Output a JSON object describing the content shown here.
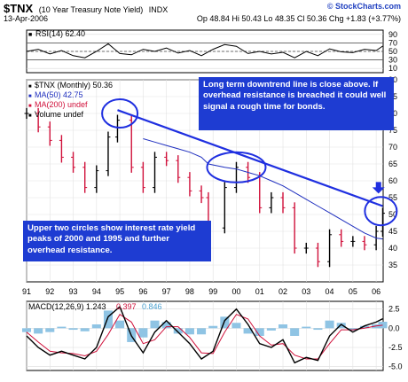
{
  "header": {
    "symbol": "$TNX",
    "name": "(10 Year Treasury Note Yield)",
    "exchange": "INDX",
    "date": "13-Apr-2006",
    "quote": "Op 48.84  Hi 50.43  Lo 48.35  Cl 50.36  Chg +1.83 (+3.77%)",
    "copyright": "© StockCharts.com",
    "copyright_color": "#2040c0"
  },
  "annotations": {
    "top_right": "Long term downtrend line is close above. If overhead resistance is breached it could well signal a rough time for bonds.",
    "bottom_left": "Upper two circles show interest rate yield peaks of 2000 and 1995 and further overhead resistance.",
    "note_bg": "#1e3cd2"
  },
  "chart_data": [
    {
      "type": "line",
      "panel": "RSI",
      "legend": [
        {
          "name": "RSI(14) 62.40",
          "color": "#000000"
        }
      ],
      "ylim": [
        0,
        100
      ],
      "yticks": [
        10,
        30,
        50,
        70,
        90
      ],
      "reference_lines": [
        30,
        50,
        70
      ],
      "grid": true,
      "x": [
        1991.0,
        1991.5,
        1992.0,
        1992.5,
        1993.0,
        1993.5,
        1994.0,
        1994.5,
        1995.0,
        1995.5,
        1996.0,
        1996.5,
        1997.0,
        1997.5,
        1998.0,
        1998.5,
        1999.0,
        1999.5,
        2000.0,
        2000.5,
        2001.0,
        2001.5,
        2002.0,
        2002.5,
        2003.0,
        2003.5,
        2004.0,
        2004.5,
        2005.0,
        2005.5,
        2006.0,
        2006.28
      ],
      "series": [
        {
          "values": [
            50,
            55,
            44,
            52,
            40,
            35,
            50,
            68,
            45,
            42,
            55,
            50,
            58,
            46,
            52,
            40,
            55,
            66,
            62,
            45,
            50,
            44,
            48,
            35,
            50,
            40,
            56,
            49,
            47,
            55,
            52,
            62.4
          ]
        }
      ]
    },
    {
      "type": "bar",
      "panel": "price",
      "legend": [
        {
          "name": "$TNX (Monthly) 50.36",
          "color": "#000000"
        },
        {
          "name": "MA(50) 42.75",
          "color": "#1f2fbf"
        },
        {
          "name": "MA(200) undef",
          "color": "#d0103a"
        },
        {
          "name": "Volume undef",
          "color": "#000000"
        }
      ],
      "ylim": [
        30,
        90
      ],
      "yticks": [
        35,
        40,
        45,
        50,
        55,
        60,
        65,
        70,
        75,
        80,
        85,
        90
      ],
      "xlim": [
        1991.0,
        2006.3
      ],
      "xticks": [
        "91",
        "92",
        "93",
        "94",
        "95",
        "96",
        "97",
        "98",
        "99",
        "00",
        "01",
        "02",
        "03",
        "04",
        "05",
        "06"
      ],
      "grid": true,
      "up_color": "#000000",
      "down_color": "#d0103a",
      "x": [
        1991.0,
        1991.5,
        1992.0,
        1992.5,
        1993.0,
        1993.5,
        1994.0,
        1994.5,
        1994.9,
        1995.5,
        1996.0,
        1996.5,
        1997.0,
        1997.5,
        1998.0,
        1998.5,
        1998.8,
        1999.5,
        2000.0,
        2000.5,
        2001.0,
        2001.5,
        2002.0,
        2002.5,
        2003.0,
        2003.5,
        2004.0,
        2004.5,
        2005.0,
        2005.5,
        2006.0,
        2006.28
      ],
      "series": [
        {
          "name": "close",
          "values": [
            80,
            76,
            72,
            67,
            64,
            58,
            63,
            73,
            78,
            64,
            58,
            67,
            66,
            61,
            57,
            55,
            46,
            58,
            64,
            61,
            52,
            55,
            52,
            40,
            40,
            36,
            44,
            42,
            42,
            41,
            45,
            50.36
          ]
        },
        {
          "name": "MA(50)",
          "values": [
            null,
            null,
            null,
            null,
            null,
            null,
            null,
            null,
            null,
            null,
            72.5,
            71.5,
            70.5,
            69.5,
            68.5,
            67,
            65,
            64,
            63.5,
            62.5,
            61.5,
            60,
            58.5,
            56.5,
            54.5,
            52.5,
            50.5,
            48.5,
            46.5,
            44.5,
            43,
            42.75
          ]
        }
      ],
      "trendline": {
        "x": [
          1994.9,
          2006.28
        ],
        "y": [
          81,
          52.5
        ],
        "color": "#1f2fe0"
      },
      "circles": [
        {
          "x": 1995.0,
          "y": 80
        },
        {
          "x": 2000.0,
          "y": 64
        },
        {
          "x": 2006.2,
          "y": 51
        }
      ],
      "arrow": {
        "x": 2006.1,
        "y": 57,
        "direction": "down"
      }
    },
    {
      "type": "line",
      "panel": "MACD",
      "legend": [
        {
          "name": "MACD(12,26,9) 1.243",
          "color": "#000000"
        },
        {
          "name": "0.397",
          "color": "#d0103a"
        },
        {
          "name": "0.846",
          "color": "#4aa0d0"
        }
      ],
      "ylim": [
        -5.5,
        3.5
      ],
      "yticks": [
        -5.0,
        -2.5,
        0.0,
        2.5
      ],
      "grid": true,
      "x": [
        1991.0,
        1991.5,
        1992.0,
        1992.5,
        1993.0,
        1993.5,
        1994.0,
        1994.5,
        1995.0,
        1995.5,
        1996.0,
        1996.5,
        1997.0,
        1997.5,
        1998.0,
        1998.5,
        1999.0,
        1999.5,
        2000.0,
        2000.5,
        2001.0,
        2001.5,
        2002.0,
        2002.5,
        2003.0,
        2003.5,
        2004.0,
        2004.5,
        2005.0,
        2005.5,
        2006.0,
        2006.28
      ],
      "series": [
        {
          "name": "MACD",
          "values": [
            -1,
            -2.5,
            -3.5,
            -3,
            -3.5,
            -4,
            -2.5,
            1.5,
            2.8,
            -1,
            -3.2,
            -0.5,
            1.0,
            -0.5,
            -2.0,
            -4.0,
            -3.0,
            1.0,
            2.5,
            0.5,
            -2.0,
            -2.5,
            -1.5,
            -4.5,
            -3.8,
            -4.2,
            -1.0,
            0.5,
            -0.5,
            0.3,
            0.8,
            1.243
          ]
        },
        {
          "name": "signal",
          "values": [
            -0.5,
            -1.8,
            -3.0,
            -3.2,
            -3.3,
            -3.6,
            -3.0,
            -0.8,
            1.8,
            0.8,
            -2.0,
            -1.5,
            0.2,
            0.2,
            -1.2,
            -3.2,
            -3.3,
            -0.5,
            1.8,
            1.2,
            -1.0,
            -2.2,
            -2.0,
            -3.5,
            -4.0,
            -4.0,
            -2.0,
            -0.2,
            -0.2,
            0.0,
            0.3,
            0.397
          ]
        },
        {
          "name": "histogram",
          "values": [
            -0.5,
            -0.7,
            -0.5,
            0.2,
            -0.2,
            -0.4,
            0.5,
            2.3,
            1.0,
            -1.8,
            -1.2,
            1.0,
            0.8,
            -0.7,
            -0.8,
            -0.8,
            0.3,
            1.5,
            0.7,
            -0.7,
            -1.0,
            -0.3,
            0.5,
            -1.0,
            0.2,
            -0.2,
            1.0,
            0.7,
            -0.3,
            0.3,
            0.5,
            0.846
          ]
        }
      ]
    }
  ]
}
